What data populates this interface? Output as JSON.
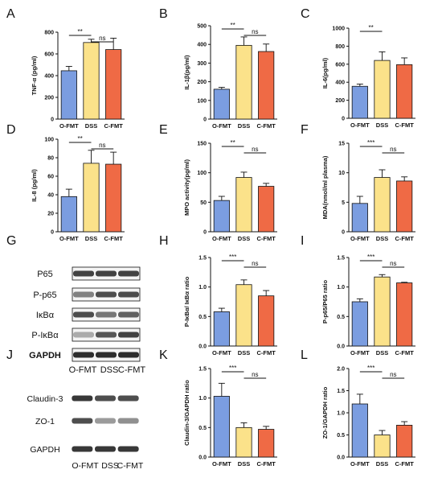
{
  "panel_letters": [
    "A",
    "B",
    "C",
    "D",
    "E",
    "F",
    "G",
    "H",
    "I",
    "J",
    "K",
    "L"
  ],
  "colors": {
    "O-FMT": "#7b9de0",
    "DSS": "#fbe28a",
    "C-FMT": "#ef6a45"
  },
  "chart_data": [
    {
      "id": "A",
      "type": "bar",
      "categories": [
        "O-FMT",
        "DSS",
        "C-FMT"
      ],
      "values": [
        445,
        705,
        640
      ],
      "errors": [
        40,
        30,
        105
      ],
      "ylabel": "TNF-α (pg/ml)",
      "ylim": [
        0,
        800
      ],
      "yticks": [
        0,
        200,
        400,
        600,
        800
      ],
      "sig": [
        {
          "from": 0,
          "to": 1,
          "label": "**"
        },
        {
          "from": 1,
          "to": 2,
          "label": "ns"
        }
      ]
    },
    {
      "id": "B",
      "type": "bar",
      "categories": [
        "O-FMT",
        "DSS",
        "C-FMT"
      ],
      "values": [
        160,
        395,
        362
      ],
      "errors": [
        10,
        45,
        40
      ],
      "ylabel": "IL-1β(pg/ml)",
      "ylim": [
        0,
        500
      ],
      "yticks": [
        0,
        100,
        200,
        300,
        400,
        500
      ],
      "sig": [
        {
          "from": 0,
          "to": 1,
          "label": "**"
        },
        {
          "from": 1,
          "to": 2,
          "label": "ns"
        }
      ]
    },
    {
      "id": "C",
      "type": "bar",
      "categories": [
        "O-FMT",
        "DSS",
        "C-FMT"
      ],
      "values": [
        355,
        642,
        595
      ],
      "errors": [
        25,
        95,
        75
      ],
      "ylabel": "IL-6(pg/ml)",
      "ylim": [
        0,
        1000
      ],
      "yticks": [
        0,
        200,
        400,
        600,
        800,
        1000
      ],
      "sig": [
        {
          "from": 0,
          "to": 1,
          "label": "**"
        }
      ]
    },
    {
      "id": "D",
      "type": "bar",
      "categories": [
        "O-FMT",
        "DSS",
        "C-FMT"
      ],
      "values": [
        38,
        74,
        73
      ],
      "errors": [
        8,
        14,
        13
      ],
      "ylabel": "IL-8 (pg/ml)",
      "ylim": [
        0,
        100
      ],
      "yticks": [
        0,
        20,
        40,
        60,
        80,
        100
      ],
      "sig": [
        {
          "from": 0,
          "to": 1,
          "label": "**"
        },
        {
          "from": 1,
          "to": 2,
          "label": "ns"
        }
      ]
    },
    {
      "id": "E",
      "type": "bar",
      "categories": [
        "O-FMT",
        "DSS",
        "C-FMT"
      ],
      "values": [
        53,
        92,
        77
      ],
      "errors": [
        7,
        9,
        5
      ],
      "ylabel": "MPO activity(pg/ml)",
      "ylim": [
        0,
        150
      ],
      "yticks": [
        0,
        50,
        100,
        150
      ],
      "sig": [
        {
          "from": 0,
          "to": 1,
          "label": "**"
        },
        {
          "from": 1,
          "to": 2,
          "label": "ns"
        }
      ]
    },
    {
      "id": "F",
      "type": "bar",
      "categories": [
        "O-FMT",
        "DSS",
        "C-FMT"
      ],
      "values": [
        4.8,
        9.2,
        8.6
      ],
      "errors": [
        1.2,
        1.3,
        0.7
      ],
      "ylabel": "MDA(nmol/ml plasma)",
      "ylim": [
        0,
        15
      ],
      "yticks": [
        0,
        5,
        10,
        15
      ],
      "sig": [
        {
          "from": 0,
          "to": 1,
          "label": "***"
        },
        {
          "from": 1,
          "to": 2,
          "label": "ns"
        }
      ]
    },
    {
      "id": "H",
      "type": "bar",
      "categories": [
        "O-FMT",
        "DSS",
        "C-FMT"
      ],
      "values": [
        0.58,
        1.04,
        0.85
      ],
      "errors": [
        0.06,
        0.08,
        0.09
      ],
      "ylabel": "P-IκBα/ IκBα ratio",
      "ylim": [
        0,
        1.5
      ],
      "yticks": [
        0.0,
        0.5,
        1.0,
        1.5
      ],
      "sig": [
        {
          "from": 0,
          "to": 1,
          "label": "***"
        },
        {
          "from": 1,
          "to": 2,
          "label": "ns"
        }
      ]
    },
    {
      "id": "I",
      "type": "bar",
      "categories": [
        "O-FMT",
        "DSS",
        "C-FMT"
      ],
      "values": [
        0.75,
        1.17,
        1.07
      ],
      "errors": [
        0.05,
        0.04,
        0.01
      ],
      "ylabel": "P-p65/P65 ratio",
      "ylim": [
        0,
        1.5
      ],
      "yticks": [
        0.0,
        0.5,
        1.0,
        1.5
      ],
      "sig": [
        {
          "from": 0,
          "to": 1,
          "label": "***"
        },
        {
          "from": 1,
          "to": 2,
          "label": "ns"
        }
      ]
    },
    {
      "id": "K",
      "type": "bar",
      "categories": [
        "O-FMT",
        "DSS",
        "C-FMT"
      ],
      "values": [
        1.03,
        0.5,
        0.47
      ],
      "errors": [
        0.22,
        0.08,
        0.05
      ],
      "ylabel": "Claudin-3/GAPDH ratio",
      "ylim": [
        0,
        1.5
      ],
      "yticks": [
        0.0,
        0.5,
        1.0,
        1.5
      ],
      "sig": [
        {
          "from": 0,
          "to": 1,
          "label": "***"
        },
        {
          "from": 1,
          "to": 2,
          "label": "ns"
        }
      ]
    },
    {
      "id": "L",
      "type": "bar",
      "categories": [
        "O-FMT",
        "DSS",
        "C-FMT"
      ],
      "values": [
        1.2,
        0.5,
        0.72
      ],
      "errors": [
        0.22,
        0.1,
        0.08
      ],
      "ylabel": "ZO-1/GAPDH ratio",
      "ylim": [
        0,
        2
      ],
      "yticks": [
        0.0,
        0.5,
        1.0,
        1.5,
        2.0
      ],
      "sig": [
        {
          "from": 0,
          "to": 1,
          "label": "***"
        },
        {
          "from": 1,
          "to": 2,
          "label": "ns"
        }
      ]
    }
  ],
  "blots": [
    {
      "id": "G",
      "rows": [
        "P65",
        "P-p65",
        "IκBα",
        "P-IκBα",
        "GAPDH"
      ],
      "lanes": [
        "O-FMT",
        "DSS",
        "C-FMT"
      ],
      "boxed": true
    },
    {
      "id": "J",
      "rows": [
        "Claudin-3",
        "ZO-1",
        "GAPDH"
      ],
      "lanes": [
        "O-FMT",
        "DSS",
        "C-FMT"
      ],
      "boxed": false
    }
  ]
}
